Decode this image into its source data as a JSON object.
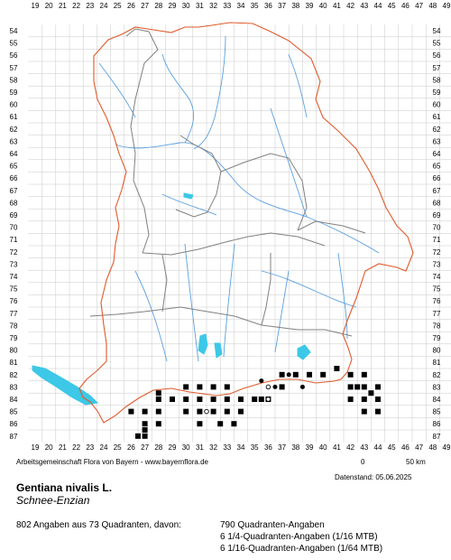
{
  "grid": {
    "x_labels": [
      "19",
      "20",
      "21",
      "22",
      "23",
      "24",
      "25",
      "26",
      "27",
      "28",
      "29",
      "30",
      "31",
      "32",
      "33",
      "34",
      "35",
      "36",
      "37",
      "38",
      "39",
      "40",
      "41",
      "42",
      "43",
      "44",
      "45",
      "46",
      "47",
      "48",
      "49"
    ],
    "y_labels": [
      "54",
      "55",
      "56",
      "57",
      "58",
      "59",
      "60",
      "61",
      "62",
      "63",
      "64",
      "65",
      "66",
      "67",
      "68",
      "69",
      "70",
      "71",
      "72",
      "73",
      "74",
      "75",
      "76",
      "77",
      "78",
      "79",
      "80",
      "81",
      "82",
      "83",
      "84",
      "85",
      "86",
      "87"
    ]
  },
  "records": {
    "quadrant": [
      [
        26,
        85
      ],
      [
        27,
        85
      ],
      [
        28,
        85
      ],
      [
        27,
        86
      ],
      [
        28,
        86
      ],
      [
        27,
        87
      ],
      [
        27,
        86.5
      ],
      [
        26.5,
        87
      ],
      [
        28,
        84
      ],
      [
        28,
        83.5
      ],
      [
        29,
        84
      ],
      [
        30,
        83
      ],
      [
        30,
        84
      ],
      [
        30,
        85
      ],
      [
        31,
        83
      ],
      [
        31,
        84
      ],
      [
        31,
        85
      ],
      [
        32,
        83
      ],
      [
        32,
        84
      ],
      [
        32,
        85
      ],
      [
        31,
        86
      ],
      [
        33,
        84
      ],
      [
        33,
        85
      ],
      [
        34,
        84
      ],
      [
        34,
        85
      ],
      [
        35,
        84
      ],
      [
        35.5,
        84
      ],
      [
        36,
        84
      ],
      [
        33,
        83
      ],
      [
        33.5,
        86
      ],
      [
        32.5,
        86
      ],
      [
        37,
        82
      ],
      [
        38,
        82
      ],
      [
        39,
        82
      ],
      [
        40,
        82
      ],
      [
        41,
        81.5
      ],
      [
        37,
        83
      ],
      [
        42,
        82
      ],
      [
        42,
        83
      ],
      [
        42,
        84
      ],
      [
        43,
        82
      ],
      [
        43,
        83
      ],
      [
        43,
        84
      ],
      [
        43,
        85
      ],
      [
        44,
        83
      ],
      [
        44,
        84
      ],
      [
        44,
        85
      ],
      [
        43.5,
        83.5
      ],
      [
        42.5,
        83
      ]
    ],
    "quarter": [
      [
        35.5,
        82.5
      ],
      [
        36.5,
        83
      ],
      [
        37.5,
        82
      ],
      [
        38.5,
        83
      ]
    ],
    "sixteenth": [
      [
        36,
        83
      ],
      [
        36,
        84
      ],
      [
        31.5,
        85
      ]
    ]
  },
  "footer": {
    "credit": "Arbeitsgemeinschaft Flora von Bayern - www.bayernflora.de",
    "scale_zero": "0",
    "scale_label": "50 km",
    "date": "Datenstand: 05.06.2025"
  },
  "species": {
    "latin": "Gentiana nivalis L.",
    "common": "Schnee-Enzian"
  },
  "stats": {
    "summary": "802 Angaben aus 73 Quadranten, davon:",
    "line1": "790 Quadranten-Angaben",
    "line2": "6 1/4-Quadranten-Angaben (1/16 MTB)",
    "line3": "6 1/16-Quadranten-Angaben (1/64 MTB)"
  },
  "colors": {
    "grid": "#c8c8c8",
    "border": "#e05a2a",
    "districts": "#808080",
    "rivers": "#5aa0e0",
    "lakes": "#3cc8e6",
    "record": "#000000"
  }
}
